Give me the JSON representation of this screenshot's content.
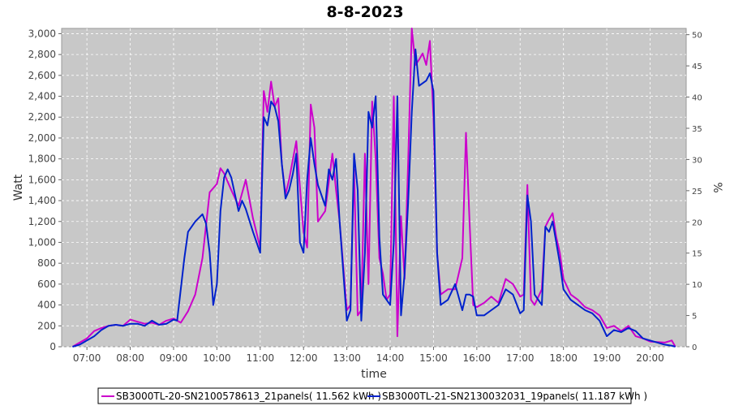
{
  "chart_data": {
    "type": "line",
    "title": "8-8-2023",
    "xlabel": "time",
    "ylabel": "Watt",
    "y2label": "%",
    "x_ticks": [
      "07:00",
      "08:00",
      "09:00",
      "10:00",
      "11:00",
      "12:00",
      "13:00",
      "14:00",
      "15:00",
      "16:00",
      "17:00",
      "18:00",
      "19:00",
      "20:00"
    ],
    "y_ticks": [
      "0",
      "200",
      "400",
      "600",
      "800",
      "1,000",
      "1,200",
      "1,400",
      "1,600",
      "1,800",
      "2,000",
      "2,200",
      "2,400",
      "2,600",
      "2,800",
      "3,000"
    ],
    "y2_ticks": [
      "0",
      "5",
      "10",
      "15",
      "20",
      "25",
      "30",
      "35",
      "40",
      "45",
      "50"
    ],
    "xlim": [
      "06:25",
      "20:50"
    ],
    "ylim": [
      0,
      3050
    ],
    "y2lim": [
      0,
      51
    ],
    "grid": true,
    "legend_position": "bottom",
    "background": "#c8c8c8",
    "series": [
      {
        "name": "SB3000TL-20-SN2100578613_21panels( 11.562 kWh )",
        "color": "#cc00cc",
        "points": [
          [
            "06:40",
            0
          ],
          [
            "06:50",
            40
          ],
          [
            "07:00",
            80
          ],
          [
            "07:10",
            150
          ],
          [
            "07:20",
            180
          ],
          [
            "07:30",
            200
          ],
          [
            "07:40",
            210
          ],
          [
            "07:50",
            200
          ],
          [
            "08:00",
            260
          ],
          [
            "08:10",
            240
          ],
          [
            "08:20",
            220
          ],
          [
            "08:30",
            230
          ],
          [
            "08:40",
            210
          ],
          [
            "08:50",
            250
          ],
          [
            "09:00",
            270
          ],
          [
            "09:10",
            230
          ],
          [
            "09:20",
            340
          ],
          [
            "09:30",
            500
          ],
          [
            "09:40",
            850
          ],
          [
            "09:50",
            1480
          ],
          [
            "10:00",
            1560
          ],
          [
            "10:05",
            1710
          ],
          [
            "10:10",
            1660
          ],
          [
            "10:20",
            1500
          ],
          [
            "10:30",
            1350
          ],
          [
            "10:40",
            1600
          ],
          [
            "10:50",
            1230
          ],
          [
            "11:00",
            950
          ],
          [
            "11:05",
            2450
          ],
          [
            "11:10",
            2250
          ],
          [
            "11:15",
            2540
          ],
          [
            "11:20",
            2300
          ],
          [
            "11:25",
            2380
          ],
          [
            "11:30",
            1750
          ],
          [
            "11:35",
            1460
          ],
          [
            "11:40",
            1600
          ],
          [
            "11:50",
            1970
          ],
          [
            "12:00",
            1100
          ],
          [
            "12:05",
            950
          ],
          [
            "12:10",
            2320
          ],
          [
            "12:15",
            2100
          ],
          [
            "12:20",
            1200
          ],
          [
            "12:30",
            1300
          ],
          [
            "12:40",
            1850
          ],
          [
            "12:45",
            1500
          ],
          [
            "12:50",
            1200
          ],
          [
            "13:00",
            350
          ],
          [
            "13:05",
            400
          ],
          [
            "13:10",
            1700
          ],
          [
            "13:15",
            300
          ],
          [
            "13:20",
            350
          ],
          [
            "13:25",
            1850
          ],
          [
            "13:30",
            600
          ],
          [
            "13:35",
            2350
          ],
          [
            "13:40",
            1800
          ],
          [
            "13:45",
            850
          ],
          [
            "13:50",
            700
          ],
          [
            "13:55",
            450
          ],
          [
            "14:00",
            500
          ],
          [
            "14:05",
            2400
          ],
          [
            "14:10",
            100
          ],
          [
            "14:15",
            1250
          ],
          [
            "14:20",
            650
          ],
          [
            "14:25",
            1800
          ],
          [
            "14:30",
            3050
          ],
          [
            "14:35",
            2700
          ],
          [
            "14:40",
            2750
          ],
          [
            "14:45",
            2810
          ],
          [
            "14:50",
            2700
          ],
          [
            "14:55",
            2930
          ],
          [
            "15:00",
            2200
          ],
          [
            "15:05",
            900
          ],
          [
            "15:10",
            500
          ],
          [
            "15:20",
            550
          ],
          [
            "15:30",
            550
          ],
          [
            "15:40",
            850
          ],
          [
            "15:45",
            2050
          ],
          [
            "15:50",
            1200
          ],
          [
            "15:55",
            400
          ],
          [
            "16:00",
            380
          ],
          [
            "16:10",
            420
          ],
          [
            "16:20",
            480
          ],
          [
            "16:30",
            420
          ],
          [
            "16:40",
            650
          ],
          [
            "16:50",
            600
          ],
          [
            "17:00",
            480
          ],
          [
            "17:05",
            500
          ],
          [
            "17:10",
            1550
          ],
          [
            "17:15",
            450
          ],
          [
            "17:20",
            400
          ],
          [
            "17:30",
            550
          ],
          [
            "17:35",
            1150
          ],
          [
            "17:40",
            1220
          ],
          [
            "17:45",
            1280
          ],
          [
            "17:50",
            1050
          ],
          [
            "17:55",
            900
          ],
          [
            "18:00",
            650
          ],
          [
            "18:10",
            500
          ],
          [
            "18:20",
            450
          ],
          [
            "18:30",
            380
          ],
          [
            "18:40",
            350
          ],
          [
            "18:50",
            300
          ],
          [
            "19:00",
            180
          ],
          [
            "19:10",
            200
          ],
          [
            "19:20",
            150
          ],
          [
            "19:30",
            200
          ],
          [
            "19:40",
            100
          ],
          [
            "19:50",
            80
          ],
          [
            "20:00",
            50
          ],
          [
            "20:20",
            40
          ],
          [
            "20:30",
            60
          ],
          [
            "20:35",
            0
          ]
        ]
      },
      {
        "name": "SB3000TL-21-SN2130032031_19panels( 11.187 kWh )",
        "color": "#0022cc",
        "points": [
          [
            "06:40",
            0
          ],
          [
            "06:50",
            20
          ],
          [
            "07:00",
            60
          ],
          [
            "07:10",
            100
          ],
          [
            "07:20",
            160
          ],
          [
            "07:30",
            200
          ],
          [
            "07:40",
            210
          ],
          [
            "07:50",
            200
          ],
          [
            "08:00",
            220
          ],
          [
            "08:10",
            220
          ],
          [
            "08:20",
            200
          ],
          [
            "08:30",
            250
          ],
          [
            "08:40",
            210
          ],
          [
            "08:50",
            220
          ],
          [
            "09:00",
            260
          ],
          [
            "09:05",
            250
          ],
          [
            "09:15",
            850
          ],
          [
            "09:20",
            1100
          ],
          [
            "09:30",
            1200
          ],
          [
            "09:40",
            1270
          ],
          [
            "09:45",
            1180
          ],
          [
            "09:50",
            900
          ],
          [
            "09:55",
            400
          ],
          [
            "10:00",
            600
          ],
          [
            "10:05",
            1300
          ],
          [
            "10:10",
            1620
          ],
          [
            "10:15",
            1700
          ],
          [
            "10:20",
            1620
          ],
          [
            "10:30",
            1300
          ],
          [
            "10:35",
            1400
          ],
          [
            "10:40",
            1320
          ],
          [
            "10:50",
            1100
          ],
          [
            "11:00",
            900
          ],
          [
            "11:05",
            2200
          ],
          [
            "11:10",
            2120
          ],
          [
            "11:15",
            2350
          ],
          [
            "11:20",
            2300
          ],
          [
            "11:25",
            2160
          ],
          [
            "11:30",
            1750
          ],
          [
            "11:35",
            1420
          ],
          [
            "11:40",
            1500
          ],
          [
            "11:45",
            1650
          ],
          [
            "11:50",
            1850
          ],
          [
            "11:55",
            1000
          ],
          [
            "12:00",
            900
          ],
          [
            "12:05",
            1600
          ],
          [
            "12:10",
            2000
          ],
          [
            "12:15",
            1750
          ],
          [
            "12:20",
            1550
          ],
          [
            "12:30",
            1350
          ],
          [
            "12:35",
            1700
          ],
          [
            "12:40",
            1600
          ],
          [
            "12:45",
            1800
          ],
          [
            "12:50",
            1200
          ],
          [
            "13:00",
            250
          ],
          [
            "13:05",
            350
          ],
          [
            "13:10",
            1850
          ],
          [
            "13:15",
            1500
          ],
          [
            "13:20",
            250
          ],
          [
            "13:25",
            900
          ],
          [
            "13:30",
            2250
          ],
          [
            "13:35",
            2100
          ],
          [
            "13:40",
            2400
          ],
          [
            "13:45",
            1050
          ],
          [
            "13:50",
            500
          ],
          [
            "14:00",
            400
          ],
          [
            "14:05",
            1000
          ],
          [
            "14:10",
            2400
          ],
          [
            "14:15",
            300
          ],
          [
            "14:20",
            700
          ],
          [
            "14:25",
            1400
          ],
          [
            "14:30",
            2250
          ],
          [
            "14:35",
            2850
          ],
          [
            "14:40",
            2500
          ],
          [
            "14:50",
            2550
          ],
          [
            "14:55",
            2620
          ],
          [
            "15:00",
            2450
          ],
          [
            "15:05",
            900
          ],
          [
            "15:10",
            400
          ],
          [
            "15:20",
            450
          ],
          [
            "15:30",
            600
          ],
          [
            "15:40",
            350
          ],
          [
            "15:45",
            500
          ],
          [
            "15:50",
            500
          ],
          [
            "15:55",
            480
          ],
          [
            "16:00",
            300
          ],
          [
            "16:10",
            300
          ],
          [
            "16:20",
            350
          ],
          [
            "16:30",
            400
          ],
          [
            "16:40",
            550
          ],
          [
            "16:50",
            500
          ],
          [
            "17:00",
            320
          ],
          [
            "17:05",
            350
          ],
          [
            "17:10",
            1450
          ],
          [
            "17:15",
            1200
          ],
          [
            "17:20",
            500
          ],
          [
            "17:30",
            400
          ],
          [
            "17:35",
            1150
          ],
          [
            "17:40",
            1100
          ],
          [
            "17:45",
            1200
          ],
          [
            "17:50",
            1000
          ],
          [
            "17:55",
            800
          ],
          [
            "18:00",
            550
          ],
          [
            "18:10",
            450
          ],
          [
            "18:20",
            400
          ],
          [
            "18:30",
            350
          ],
          [
            "18:40",
            320
          ],
          [
            "18:50",
            250
          ],
          [
            "19:00",
            100
          ],
          [
            "19:10",
            160
          ],
          [
            "19:20",
            140
          ],
          [
            "19:30",
            180
          ],
          [
            "19:40",
            150
          ],
          [
            "19:50",
            80
          ],
          [
            "20:00",
            60
          ],
          [
            "20:20",
            20
          ],
          [
            "20:30",
            10
          ],
          [
            "20:35",
            0
          ]
        ]
      }
    ]
  }
}
